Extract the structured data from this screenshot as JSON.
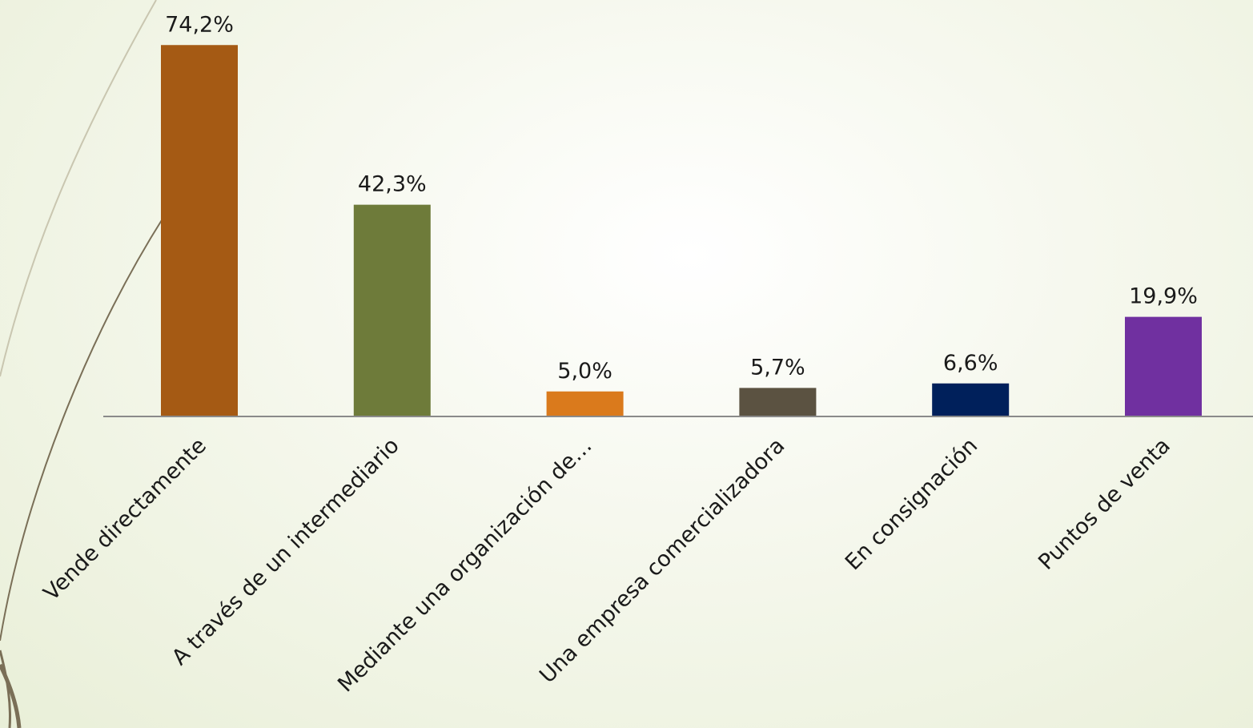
{
  "chart_data": {
    "type": "bar",
    "categories": [
      "Vende directamente",
      "A través de un intermediario",
      "Mediante una organización de…",
      "Una empresa comercializadora",
      "En consignación",
      "Puntos de venta"
    ],
    "values": [
      74.2,
      42.3,
      5.0,
      5.7,
      6.6,
      19.9
    ],
    "value_labels": [
      "74,2%",
      "42,3%",
      "5,0%",
      "5,7%",
      "6,6%",
      "19,9%"
    ],
    "colors": [
      "#A55A14",
      "#6E7B3A",
      "#DA7A1C",
      "#5B5241",
      "#00205B",
      "#7030A0"
    ],
    "ylim": [
      0,
      80
    ],
    "grid": false,
    "legend": "none",
    "title": "",
    "xlabel": "",
    "ylabel": ""
  },
  "decor": {
    "curve_color": "#7a6f57",
    "curve_light_color": "#c9c6b0"
  }
}
